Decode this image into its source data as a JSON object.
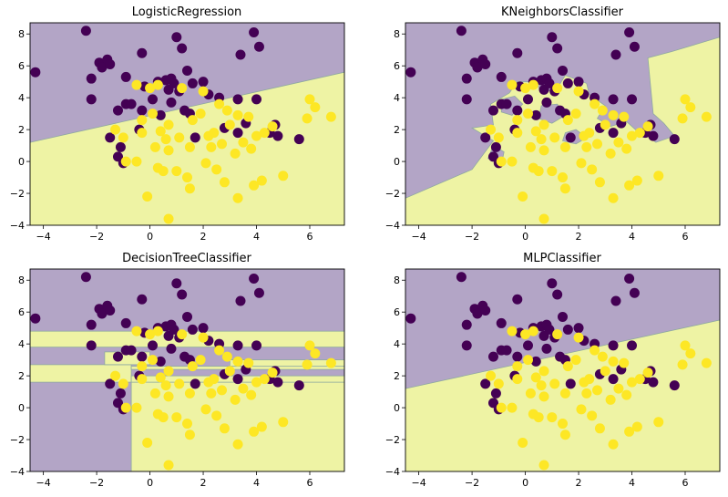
{
  "colors": {
    "purple": "#440154",
    "yellow": "#fde725",
    "bg_purple": "#b3a5c6",
    "bg_yellow": "#eef3a4"
  },
  "chart_data": [
    {
      "type": "scatter",
      "title": "LogisticRegression",
      "xlim": [
        -4.5,
        7.3
      ],
      "ylim": [
        -4,
        8.7
      ],
      "xticks": [
        -4,
        -2,
        0,
        2,
        4,
        6
      ],
      "yticks": [
        -4,
        -2,
        0,
        2,
        4,
        6,
        8
      ],
      "xlabel": "",
      "ylabel": "",
      "decision_boundary": [
        [
          -4.5,
          1.2
        ],
        [
          7.3,
          5.6
        ]
      ],
      "regions": "purple above line, yellow below"
    },
    {
      "type": "scatter",
      "title": "KNeighborsClassifier",
      "xlim": [
        -4.5,
        7.3
      ],
      "ylim": [
        -4,
        8.7
      ],
      "xticks": [
        -4,
        -2,
        0,
        2,
        4,
        6
      ],
      "yticks": [
        -4,
        -2,
        0,
        2,
        4,
        6,
        8
      ],
      "xlabel": "",
      "ylabel": ""
    },
    {
      "type": "scatter",
      "title": "DecisionTreeClassifier",
      "xlim": [
        -4.5,
        7.3
      ],
      "ylim": [
        -4,
        8.7
      ],
      "xticks": [
        -4,
        -2,
        0,
        2,
        4,
        6
      ],
      "yticks": [
        -4,
        -2,
        0,
        2,
        4,
        6,
        8
      ],
      "xlabel": "",
      "ylabel": ""
    },
    {
      "type": "scatter",
      "title": "MLPClassifier",
      "xlim": [
        -4.5,
        7.3
      ],
      "ylim": [
        -4,
        8.7
      ],
      "xticks": [
        -4,
        -2,
        0,
        2,
        4,
        6
      ],
      "yticks": [
        -4,
        -2,
        0,
        2,
        4,
        6,
        8
      ],
      "xlabel": "",
      "ylabel": "",
      "decision_boundary": [
        [
          -4.5,
          1.2
        ],
        [
          7.3,
          5.5
        ]
      ],
      "regions": "purple above line, yellow below"
    }
  ],
  "points": {
    "class_0": [
      [
        -4.3,
        5.6
      ],
      [
        -2.4,
        8.2
      ],
      [
        -2.2,
        5.2
      ],
      [
        -2.2,
        3.9
      ],
      [
        -1.9,
        6.2
      ],
      [
        -1.8,
        5.9
      ],
      [
        -1.6,
        6.4
      ],
      [
        -1.5,
        6.1
      ],
      [
        -1.5,
        1.5
      ],
      [
        -1.2,
        0.3
      ],
      [
        -1.1,
        0.9
      ],
      [
        -1.2,
        3.2
      ],
      [
        -0.9,
        3.6
      ],
      [
        -0.7,
        3.6
      ],
      [
        -0.4,
        2.0
      ],
      [
        -0.3,
        6.8
      ],
      [
        -0.2,
        4.7
      ],
      [
        0.1,
        3.9
      ],
      [
        0.4,
        2.9
      ],
      [
        0.6,
        5.1
      ],
      [
        0.7,
        4.5
      ],
      [
        0.8,
        5.2
      ],
      [
        0.8,
        3.7
      ],
      [
        0.9,
        4.9
      ],
      [
        1.0,
        7.8
      ],
      [
        1.1,
        4.4
      ],
      [
        1.2,
        7.1
      ],
      [
        1.3,
        3.2
      ],
      [
        1.4,
        5.7
      ],
      [
        1.5,
        3.0
      ],
      [
        1.6,
        4.9
      ],
      [
        1.7,
        1.5
      ],
      [
        2.0,
        5.0
      ],
      [
        2.2,
        4.2
      ],
      [
        2.6,
        4.0
      ],
      [
        2.8,
        2.1
      ],
      [
        3.3,
        1.8
      ],
      [
        3.3,
        3.9
      ],
      [
        3.4,
        6.7
      ],
      [
        3.6,
        2.4
      ],
      [
        3.9,
        8.1
      ],
      [
        4.0,
        3.9
      ],
      [
        4.1,
        7.2
      ],
      [
        4.5,
        1.8
      ],
      [
        4.7,
        2.3
      ],
      [
        4.8,
        1.6
      ],
      [
        5.6,
        1.4
      ],
      [
        -1.0,
        -0.1
      ],
      [
        -0.3,
        3.2
      ],
      [
        -0.9,
        5.3
      ],
      [
        0.3,
        5.0
      ]
    ],
    "class_1": [
      [
        -1.3,
        2.0
      ],
      [
        -1.0,
        1.5
      ],
      [
        -0.9,
        0.0
      ],
      [
        -0.5,
        4.8
      ],
      [
        -0.5,
        0.0
      ],
      [
        -0.3,
        2.6
      ],
      [
        -0.3,
        1.8
      ],
      [
        -0.1,
        -2.2
      ],
      [
        0.0,
        4.6
      ],
      [
        0.1,
        3.0
      ],
      [
        0.3,
        -0.4
      ],
      [
        0.3,
        4.8
      ],
      [
        0.4,
        1.9
      ],
      [
        0.5,
        -0.6
      ],
      [
        0.6,
        1.4
      ],
      [
        0.7,
        -3.6
      ],
      [
        0.7,
        2.3
      ],
      [
        0.7,
        0.7
      ],
      [
        1.0,
        -0.6
      ],
      [
        1.1,
        1.5
      ],
      [
        1.2,
        4.6
      ],
      [
        1.4,
        -1.0
      ],
      [
        1.5,
        0.9
      ],
      [
        1.5,
        -1.7
      ],
      [
        1.6,
        2.6
      ],
      [
        1.9,
        3.0
      ],
      [
        2.0,
        4.4
      ],
      [
        2.1,
        -0.1
      ],
      [
        2.3,
        0.9
      ],
      [
        2.4,
        1.8
      ],
      [
        2.5,
        -0.5
      ],
      [
        2.6,
        3.6
      ],
      [
        2.7,
        1.1
      ],
      [
        2.8,
        -1.3
      ],
      [
        2.9,
        3.2
      ],
      [
        3.0,
        2.3
      ],
      [
        3.2,
        0.5
      ],
      [
        3.3,
        -2.3
      ],
      [
        3.3,
        2.9
      ],
      [
        3.5,
        1.2
      ],
      [
        3.7,
        2.8
      ],
      [
        3.8,
        0.8
      ],
      [
        3.9,
        -1.5
      ],
      [
        4.0,
        1.6
      ],
      [
        4.2,
        -1.2
      ],
      [
        4.3,
        1.8
      ],
      [
        4.6,
        2.2
      ],
      [
        5.9,
        2.7
      ],
      [
        6.0,
        3.9
      ],
      [
        6.2,
        3.4
      ],
      [
        6.8,
        2.8
      ],
      [
        5.0,
        -0.9
      ],
      [
        2.2,
        1.6
      ],
      [
        0.2,
        0.9
      ]
    ]
  }
}
